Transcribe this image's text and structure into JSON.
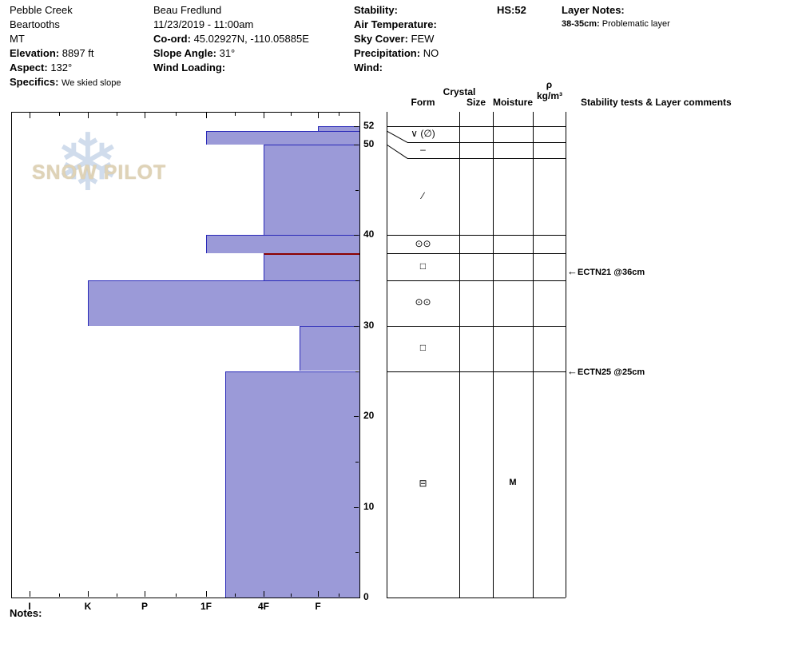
{
  "header": {
    "location": {
      "name": "Pebble Creek",
      "range": "Beartooths",
      "state": "MT",
      "elevation_label": "Elevation:",
      "elevation_value": "8897 ft",
      "aspect_label": "Aspect:",
      "aspect_value": "132°",
      "specifics_label": "Specifics:",
      "specifics_value": "We skied slope"
    },
    "observer": {
      "name": "Beau  Fredlund",
      "datetime": "11/23/2019 - 11:00am",
      "coord_label": "Co-ord:",
      "coord_value": "45.02927N, -110.05885E",
      "slope_angle_label": "Slope Angle:",
      "slope_angle_value": "31°",
      "wind_loading_label": "Wind Loading:"
    },
    "weather": {
      "stability_label": "Stability:",
      "air_temperature_label": "Air Temperature:",
      "sky_cover_label": "Sky Cover:",
      "sky_cover_value": "FEW",
      "precipitation_label": "Precipitation:",
      "precipitation_value": "NO",
      "wind_label": "Wind:"
    },
    "hs_label": "HS:",
    "hs_value": "52",
    "layer_notes": {
      "label": "Layer Notes:",
      "entry_depth": "38-35cm:",
      "entry_text": "Problematic layer"
    }
  },
  "watermark": {
    "text": "SNOW PILOT"
  },
  "panel": {
    "crystal": "Crystal",
    "form": "Form",
    "size": "Size",
    "moisture": "Moisture",
    "density_symbol": "ρ",
    "density_units": "kg/m³",
    "comments": "Stability tests & Layer comments"
  },
  "notes_label": "Notes:",
  "chart_data": {
    "type": "bar",
    "subtype": "snow-hardness-profile",
    "title": "Snow pit hardness profile",
    "hs_cm": 52,
    "depth_axis": {
      "unit": "cm",
      "ticks": [
        0,
        10,
        20,
        30,
        40,
        50,
        52
      ],
      "minor_ticks": [
        5,
        15,
        25,
        35,
        45
      ],
      "range": [
        0,
        52
      ]
    },
    "hardness_axis": {
      "categories": [
        "I",
        "K",
        "P",
        "1F",
        "4F",
        "F"
      ],
      "note": "hand hardness, soft (F) at right, bars extend left as hardness increases"
    },
    "layers": [
      {
        "top_cm": 52,
        "bottom_cm": 51.5,
        "hardness": "F",
        "grain_form": "∨ (∅)"
      },
      {
        "top_cm": 51.5,
        "bottom_cm": 50,
        "hardness": "1F",
        "grain_form": "–"
      },
      {
        "top_cm": 50,
        "bottom_cm": 40,
        "hardness": "4F",
        "grain_form": "∕"
      },
      {
        "top_cm": 40,
        "bottom_cm": 38,
        "hardness": "1F",
        "grain_form": "⊙⊙"
      },
      {
        "top_cm": 38,
        "bottom_cm": 35,
        "hardness": "4F",
        "grain_form": "□",
        "problematic": true
      },
      {
        "top_cm": 35,
        "bottom_cm": 30,
        "hardness": "K",
        "grain_form": "⊙⊙"
      },
      {
        "top_cm": 30,
        "bottom_cm": 25,
        "hardness": "F+",
        "grain_form": "□"
      },
      {
        "top_cm": 25,
        "bottom_cm": 0,
        "hardness": "1F-",
        "grain_form": "⊟",
        "moisture": "M"
      }
    ],
    "stability_tests": [
      {
        "label": "ECTN21 @36cm",
        "depth_cm": 36
      },
      {
        "label": "ECTN25 @25cm",
        "depth_cm": 25
      }
    ],
    "colors": {
      "bar_fill": "#9b9ad8",
      "bar_border": "#2929b8",
      "problem_layer": "#8b0000"
    }
  }
}
